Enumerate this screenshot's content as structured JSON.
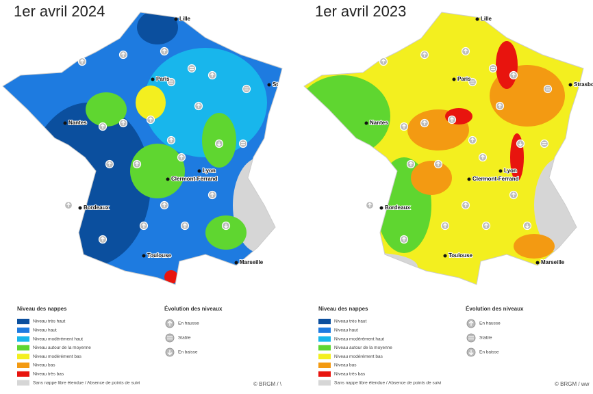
{
  "maps": [
    {
      "title": "1er avril 2024",
      "cities": [
        "Lille",
        "Paris",
        "St",
        "Nantes",
        "Clermont-Ferrand",
        "Lyon",
        "Bordeaux",
        "Toulouse",
        "Marseille"
      ],
      "legend": {
        "title": "Niveau des nappes",
        "items": [
          {
            "label": "Niveau très haut",
            "color": "#0b4f9e"
          },
          {
            "label": "Niveau haut",
            "color": "#1e7be0"
          },
          {
            "label": "Niveau modérément haut",
            "color": "#18b6ec"
          },
          {
            "label": "Niveau autour de la moyenne",
            "color": "#5fd630"
          },
          {
            "label": "Niveau modérément bas",
            "color": "#f3ef1f"
          },
          {
            "label": "Niveau bas",
            "color": "#f39a12"
          },
          {
            "label": "Niveau très bas",
            "color": "#e8140e"
          },
          {
            "label": "Sans nappe libre étendue / Absence de points de suivi",
            "color": "#d6d6d6"
          }
        ]
      },
      "evolution": {
        "title": "Évolution des niveaux",
        "items": [
          "En hausse",
          "Stable",
          "En baisse"
        ]
      },
      "credit": "© BRGM / \\"
    },
    {
      "title": "1er avril 2023",
      "cities": [
        "Lille",
        "Paris",
        "Strasbo",
        "Nantes",
        "Clermont-Ferrand",
        "Lyon",
        "Bordeaux",
        "Toulouse",
        "Marseille"
      ],
      "legend": {
        "title": "Niveau des nappes",
        "items": [
          {
            "label": "Niveau très haut",
            "color": "#0b4f9e"
          },
          {
            "label": "Niveau haut",
            "color": "#1e7be0"
          },
          {
            "label": "Niveau modérément haut",
            "color": "#18b6ec"
          },
          {
            "label": "Niveau autour de la moyenne",
            "color": "#5fd630"
          },
          {
            "label": "Niveau modérément bas",
            "color": "#f3ef1f"
          },
          {
            "label": "Niveau bas",
            "color": "#f39a12"
          },
          {
            "label": "Niveau très bas",
            "color": "#e8140e"
          },
          {
            "label": "Sans nappe libre étendue / Absence de points de suivi",
            "color": "#d6d6d6"
          }
        ]
      },
      "evolution": {
        "title": "Évolution des niveaux",
        "items": [
          "En hausse",
          "Stable",
          "En baisse"
        ]
      },
      "credit": "© BRGM / ww"
    }
  ]
}
